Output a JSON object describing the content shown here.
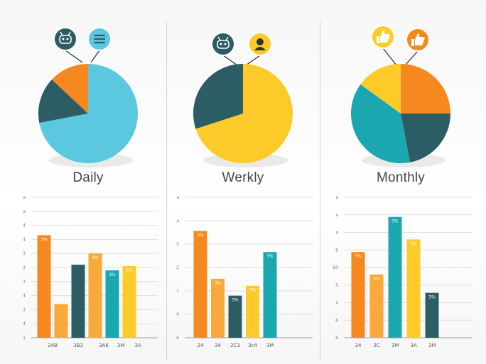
{
  "colors": {
    "teal": "#1aa7b0",
    "sky": "#5cc8df",
    "dark_teal": "#2d5d64",
    "orange": "#f5891f",
    "light_orange": "#f7a93a",
    "yellow": "#fccb2a",
    "grid": "#dedede"
  },
  "chart_data": [
    {
      "type": "pie",
      "title": "Daily",
      "icons": [
        "robot-icon",
        "menu-lines-icon"
      ],
      "slices": [
        {
          "value": 72,
          "color": "#5cc8df"
        },
        {
          "value": 15,
          "color": "#2d5d64"
        },
        {
          "value": 13,
          "color": "#f5891f"
        }
      ]
    },
    {
      "type": "pie",
      "title": "Werkly",
      "icons": [
        "robot-icon",
        "user-icon"
      ],
      "slices": [
        {
          "value": 70,
          "color": "#fccb2a"
        },
        {
          "value": 30,
          "color": "#2d5d64"
        }
      ]
    },
    {
      "type": "pie",
      "title": "Monthly",
      "icons": [
        "thumbs-up-icon",
        "thumbs-up-icon"
      ],
      "slices": [
        {
          "value": 25,
          "color": "#f5891f"
        },
        {
          "value": 22,
          "color": "#2d5d64"
        },
        {
          "value": 38,
          "color": "#1aa7b0"
        },
        {
          "value": 15,
          "color": "#fccb2a"
        }
      ]
    },
    {
      "type": "bar",
      "yticks": [
        "a",
        "a",
        "4",
        "4",
        "3",
        "3",
        "3",
        "4",
        "3",
        "4",
        "1"
      ],
      "ylim": [
        0,
        10
      ],
      "x_labels": [
        "24B",
        "3B3",
        "3A6",
        "3M",
        "3A"
      ],
      "data_labels": [
        "3%",
        "3%",
        "3%",
        "3%"
      ],
      "bars": [
        {
          "value": 7.3,
          "color": "#f5891f",
          "slot": 0,
          "label": 0
        },
        {
          "value": 2.4,
          "color": "#f7a93a",
          "slot": 1
        },
        {
          "value": 5.2,
          "color": "#2d5d64",
          "slot": 2
        },
        {
          "value": 6.0,
          "color": "#f7a93a",
          "slot": 3,
          "label": 1
        },
        {
          "value": 4.8,
          "color": "#1aa7b0",
          "slot": 4,
          "label": 2
        },
        {
          "value": 5.1,
          "color": "#fccb2a",
          "slot": 5,
          "label": 3
        }
      ],
      "x_label_slots": [
        0.5,
        2,
        3.5,
        4.5,
        5.5
      ]
    },
    {
      "type": "bar",
      "yticks": [
        "a",
        "a",
        "5",
        "2",
        "1",
        "0",
        "6"
      ],
      "ylim": [
        0,
        10
      ],
      "x_labels": [
        "24",
        "34",
        "2C3",
        "3c4",
        "3M"
      ],
      "data_labels": [
        "3%",
        "3%",
        "3%",
        "3%",
        "3%"
      ],
      "bars": [
        {
          "value": 7.6,
          "color": "#f5891f",
          "slot": 0,
          "label": 0
        },
        {
          "value": 4.2,
          "color": "#f7a93a",
          "slot": 1,
          "label": 1
        },
        {
          "value": 3.0,
          "color": "#2d5d64",
          "slot": 2,
          "label": 2
        },
        {
          "value": 3.7,
          "color": "#fccb2a",
          "slot": 3,
          "label": 3
        },
        {
          "value": 6.1,
          "color": "#1aa7b0",
          "slot": 4,
          "label": 4
        }
      ],
      "x_label_slots": [
        0,
        1,
        2,
        3,
        4
      ]
    },
    {
      "type": "bar",
      "yticks": [
        "a",
        "a",
        "a",
        "6",
        "60",
        "5",
        "a",
        "6",
        "6"
      ],
      "ylim": [
        0,
        10
      ],
      "x_labels": [
        "34",
        "2C",
        "3M",
        "3A",
        "3M"
      ],
      "data_labels": [
        "3%",
        "3%",
        "3%",
        "3%",
        "3%"
      ],
      "bars": [
        {
          "value": 6.1,
          "color": "#f5891f",
          "slot": 0,
          "label": 0
        },
        {
          "value": 4.5,
          "color": "#f7a93a",
          "slot": 1,
          "label": 1
        },
        {
          "value": 8.6,
          "color": "#1aa7b0",
          "slot": 2,
          "label": 2
        },
        {
          "value": 7.0,
          "color": "#fccb2a",
          "slot": 3,
          "label": 3
        },
        {
          "value": 3.2,
          "color": "#2d5d64",
          "slot": 4,
          "label": 4
        }
      ],
      "x_label_slots": [
        0,
        1,
        2,
        3,
        4
      ]
    }
  ]
}
